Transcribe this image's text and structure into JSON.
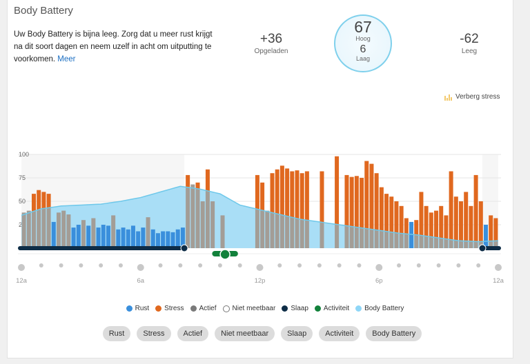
{
  "header": {
    "title": "Body Battery"
  },
  "summary": {
    "message": "Uw Body Battery is bijna leeg. Zorg dat u meer rust krijgt na dit soort dagen en neem uzelf in acht om uitputting te voorkomen.",
    "more_link": "Meer",
    "charged_value": "+36",
    "charged_label": "Opgeladen",
    "high_value": "67",
    "high_label": "Hoog",
    "low_value": "6",
    "low_label": "Laag",
    "drained_value": "-62",
    "drained_label": "Leeg"
  },
  "toggle_stress_label": "Verberg stress",
  "colors": {
    "rest": "#3a8fdc",
    "stress": "#e0681f",
    "active": "#a39d96",
    "unmeasurable": "#ffffff",
    "sleep": "#0e2d47",
    "activity": "#12813b",
    "body_battery": "#a9def6",
    "body_battery_line": "#6ec8ea"
  },
  "chart_data": {
    "type": "bar",
    "ylim": [
      0,
      100
    ],
    "y_ticks": [
      "25",
      "50",
      "75",
      "100"
    ],
    "x_ticks": [
      "12a",
      "6a",
      "12p",
      "6p",
      "12a"
    ],
    "grid": true,
    "bar_interval_minutes": 15,
    "bars": [
      [
        "a",
        38
      ],
      [
        "a",
        40
      ],
      [
        "s",
        58
      ],
      [
        "s",
        62
      ],
      [
        "s",
        60
      ],
      [
        "s",
        58
      ],
      [
        "r",
        28
      ],
      [
        "a",
        38
      ],
      [
        "a",
        40
      ],
      [
        "a",
        36
      ],
      [
        "r",
        22
      ],
      [
        "r",
        25
      ],
      [
        "a",
        30
      ],
      [
        "r",
        24
      ],
      [
        "a",
        32
      ],
      [
        "r",
        22
      ],
      [
        "r",
        25
      ],
      [
        "r",
        24
      ],
      [
        "a",
        35
      ],
      [
        "r",
        20
      ],
      [
        "r",
        22
      ],
      [
        "r",
        20
      ],
      [
        "r",
        24
      ],
      [
        "r",
        18
      ],
      [
        "r",
        22
      ],
      [
        "a",
        33
      ],
      [
        "r",
        20
      ],
      [
        "r",
        16
      ],
      [
        "r",
        18
      ],
      [
        "r",
        18
      ],
      [
        "r",
        17
      ],
      [
        "r",
        20
      ],
      [
        "r",
        22
      ],
      [
        "s",
        78
      ],
      [
        "a",
        68
      ],
      [
        "s",
        70
      ],
      [
        "a",
        50
      ],
      [
        "s",
        84
      ],
      [
        "a",
        50
      ],
      [
        "n",
        0
      ],
      [
        "a",
        35
      ],
      [
        "n",
        0
      ],
      [
        "n",
        0
      ],
      [
        "n",
        0
      ],
      [
        "n",
        0
      ],
      [
        "n",
        0
      ],
      [
        "n",
        0
      ],
      [
        "s",
        78
      ],
      [
        "s",
        70
      ],
      [
        "a",
        40
      ],
      [
        "s",
        80
      ],
      [
        "s",
        84
      ],
      [
        "s",
        88
      ],
      [
        "s",
        85
      ],
      [
        "s",
        82
      ],
      [
        "s",
        83
      ],
      [
        "s",
        80
      ],
      [
        "s",
        82
      ],
      [
        "n",
        0
      ],
      [
        "n",
        0
      ],
      [
        "s",
        82
      ],
      [
        "n",
        0
      ],
      [
        "n",
        0
      ],
      [
        "s",
        98
      ],
      [
        "n",
        0
      ],
      [
        "s",
        78
      ],
      [
        "s",
        76
      ],
      [
        "s",
        77
      ],
      [
        "s",
        75
      ],
      [
        "s",
        93
      ],
      [
        "s",
        90
      ],
      [
        "s",
        80
      ],
      [
        "s",
        65
      ],
      [
        "s",
        58
      ],
      [
        "s",
        55
      ],
      [
        "s",
        50
      ],
      [
        "s",
        45
      ],
      [
        "s",
        32
      ],
      [
        "r",
        28
      ],
      [
        "s",
        30
      ],
      [
        "s",
        60
      ],
      [
        "s",
        45
      ],
      [
        "s",
        38
      ],
      [
        "s",
        40
      ],
      [
        "s",
        45
      ],
      [
        "s",
        35
      ],
      [
        "s",
        82
      ],
      [
        "s",
        55
      ],
      [
        "s",
        50
      ],
      [
        "s",
        60
      ],
      [
        "s",
        45
      ],
      [
        "s",
        78
      ],
      [
        "s",
        50
      ],
      [
        "r",
        25
      ],
      [
        "s",
        35
      ],
      [
        "s",
        32
      ]
    ],
    "body_battery_hourly": [
      35,
      42,
      45,
      46,
      47,
      50,
      54,
      60,
      66,
      63,
      58,
      46,
      41,
      36,
      31,
      28,
      25,
      22,
      19,
      16,
      14,
      11,
      8,
      7,
      8
    ],
    "sleep_hours": [
      [
        0,
        8.2
      ],
      [
        23.2,
        24
      ]
    ],
    "activity_hours": [
      9.6,
      10.9
    ]
  },
  "legend": [
    {
      "label": "Rust",
      "color": "#3a8fdc"
    },
    {
      "label": "Stress",
      "color": "#e0681f"
    },
    {
      "label": "Actief",
      "color": "#7a7a7a"
    },
    {
      "label": "Niet meetbaar",
      "color": "#ffffff"
    },
    {
      "label": "Slaap",
      "color": "#0e2d47"
    },
    {
      "label": "Activiteit",
      "color": "#12813b"
    },
    {
      "label": "Body Battery",
      "color": "#8fd6f7"
    }
  ],
  "filters": [
    "Rust",
    "Stress",
    "Actief",
    "Niet meetbaar",
    "Slaap",
    "Activiteit",
    "Body Battery"
  ]
}
